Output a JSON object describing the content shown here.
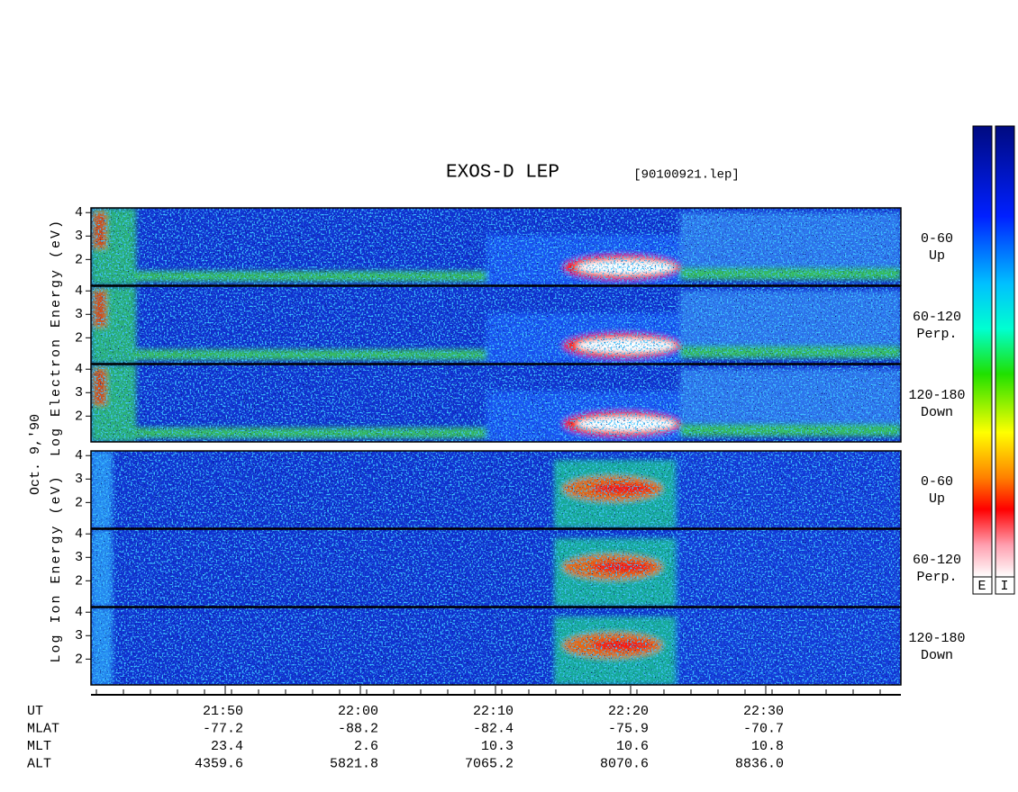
{
  "header": {
    "title": "EXOS-D LEP",
    "file": "[90100921.lep]"
  },
  "side_labels": {
    "electron": "Log Electron Energy (eV)",
    "date": "Oct. 9,'90",
    "ion": "Log Ion Energy (eV)"
  },
  "panels": [
    {
      "group": "electron",
      "angle": "0-60",
      "direction": "Up"
    },
    {
      "group": "electron",
      "angle": "60-120",
      "direction": "Perp."
    },
    {
      "group": "electron",
      "angle": "120-180",
      "direction": "Down"
    },
    {
      "group": "ion",
      "angle": "0-60",
      "direction": "Up"
    },
    {
      "group": "ion",
      "angle": "60-120",
      "direction": "Perp."
    },
    {
      "group": "ion",
      "angle": "120-180",
      "direction": "Down"
    }
  ],
  "energy_axis": {
    "ylim": [
      0.9,
      4.2
    ],
    "yticks": [
      2,
      3,
      4
    ]
  },
  "time_axis": {
    "row_labels": [
      "UT",
      "MLAT",
      "MLT",
      "ALT"
    ],
    "columns": [
      [
        "21:50",
        "-77.2",
        "23.4",
        "4359.6"
      ],
      [
        "22:00",
        "-88.2",
        "2.6",
        "5821.8"
      ],
      [
        "22:10",
        "-82.4",
        "10.3",
        "7065.2"
      ],
      [
        "22:20",
        "-75.9",
        "10.6",
        "8070.6"
      ],
      [
        "22:30",
        "-70.7",
        "10.8",
        "8836.0"
      ]
    ]
  },
  "colorbar": {
    "labels": [
      "E",
      "I"
    ]
  }
}
